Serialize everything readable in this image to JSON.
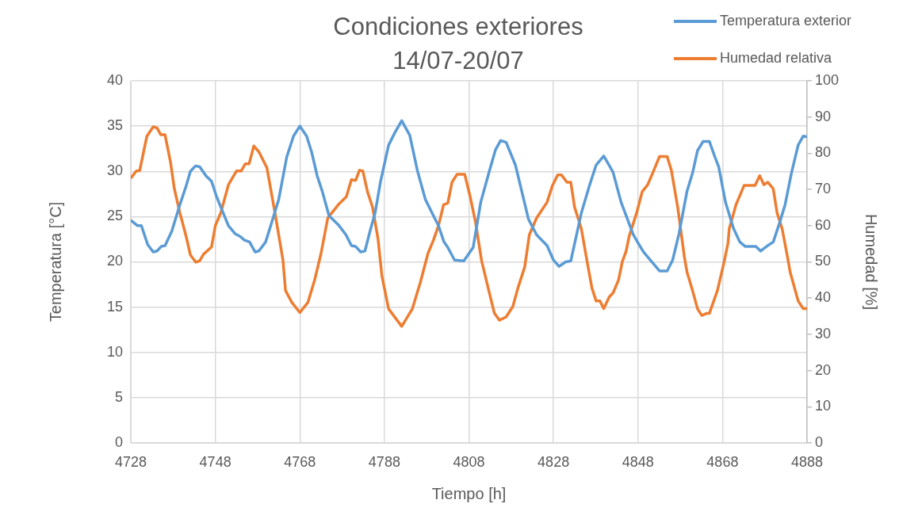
{
  "chart_data": {
    "type": "line",
    "title": "Condiciones exteriores\n14/07-20/07",
    "xlabel": "Tiempo [h]",
    "ylabel": "Temperatura [°C]",
    "y2label": "Humedad [%]",
    "xlim": [
      4728,
      4888
    ],
    "xticks": [
      4728,
      4748,
      4768,
      4788,
      4808,
      4828,
      4848,
      4868,
      4888
    ],
    "ylim": [
      0,
      40
    ],
    "yticks": [
      0,
      5,
      10,
      15,
      20,
      25,
      30,
      35,
      40
    ],
    "y2lim": [
      0,
      100
    ],
    "y2ticks": [
      0,
      10,
      20,
      30,
      40,
      50,
      60,
      70,
      80,
      90,
      100
    ],
    "grid": true,
    "legend": "top right",
    "marker": "none",
    "line_style": "solid",
    "series": [
      {
        "name": "Temperatura exterior",
        "color": "#5b9bd5",
        "axis": "y",
        "x": [
          4728,
          4729.6,
          4730.5,
          4732,
          4733.3,
          4734.2,
          4735.2,
          4736.1,
          4737.7,
          4739.6,
          4741.1,
          4742.1,
          4743.3,
          4744.3,
          4745.8,
          4747.1,
          4748.3,
          4749.6,
          4751.1,
          4752.7,
          4753.9,
          4754.9,
          4756.1,
          4757.4,
          4758.3,
          4759.9,
          4761.1,
          4763,
          4764.9,
          4766.5,
          4768,
          4769.6,
          4770.8,
          4772.1,
          4773.3,
          4774.9,
          4777.1,
          4778.9,
          4780.2,
          4781.2,
          4782.4,
          4783.4,
          4784.6,
          4785.8,
          4787.1,
          4789,
          4790.5,
          4792.1,
          4794,
          4795.8,
          4797.7,
          4799.6,
          4800.8,
          4802.1,
          4803,
          4804.6,
          4806.8,
          4809,
          4810.8,
          4812.7,
          4814.3,
          4815.5,
          4816.8,
          4819,
          4820.5,
          4822.1,
          4824,
          4826.5,
          4828,
          4829.3,
          4830.9,
          4832.1,
          4834.6,
          4836.5,
          4838.1,
          4839.9,
          4841.5,
          4842.1,
          4844,
          4845.2,
          4846.8,
          4848,
          4849.3,
          4850.9,
          4853.1,
          4854.9,
          4856.2,
          4857.7,
          4859.6,
          4860.9,
          4862.1,
          4863.4,
          4864.9,
          4866.2,
          4867.1,
          4868.7,
          4870.6,
          4872.1,
          4873.4,
          4875.9,
          4877,
          4878.4,
          4880,
          4881.5,
          4882.8,
          4884.3,
          4885.9,
          4887.1,
          4888
        ],
        "values": [
          24.6,
          24,
          24,
          21.9,
          21.1,
          21.2,
          21.7,
          21.8,
          23.4,
          26.3,
          28.4,
          30,
          30.6,
          30.5,
          29.5,
          28.9,
          27.2,
          25.7,
          24,
          23.1,
          22.8,
          22.4,
          22.2,
          21.1,
          21.2,
          22.2,
          24,
          26.9,
          31.6,
          33.9,
          35,
          33.9,
          32.1,
          29.5,
          27.8,
          25.1,
          24.1,
          23,
          21.8,
          21.7,
          21.1,
          21.2,
          23.4,
          25.4,
          28.9,
          32.9,
          34.3,
          35.6,
          34,
          30.1,
          26.9,
          25.1,
          24,
          22.2,
          21.6,
          20.2,
          20.1,
          21.6,
          26.6,
          29.8,
          32.4,
          33.4,
          33.2,
          30.7,
          27.8,
          24.7,
          23,
          21.8,
          20.2,
          19.5,
          20,
          20.1,
          25.4,
          28.4,
          30.7,
          31.7,
          30.4,
          29.9,
          26.6,
          25.1,
          23.1,
          22.1,
          21.1,
          20.2,
          19,
          19,
          20.2,
          23.1,
          27.8,
          29.8,
          32.3,
          33.3,
          33.3,
          31.6,
          30.5,
          26.6,
          23.7,
          22.2,
          21.7,
          21.7,
          21.2,
          21.7,
          22.2,
          24.3,
          26.3,
          29.8,
          32.9,
          33.9,
          33.8
        ]
      },
      {
        "name": "Humedad relativa",
        "color": "#ed7d31",
        "axis": "y2",
        "x": [
          4728,
          4729.3,
          4730.1,
          4731.8,
          4733.3,
          4734.2,
          4735.1,
          4736.1,
          4737.4,
          4738.3,
          4739.6,
          4741.1,
          4742.1,
          4743.4,
          4744.3,
          4745.2,
          4747.1,
          4748,
          4749.3,
          4751.1,
          4753,
          4754.1,
          4755.1,
          4756,
          4757.1,
          4758.3,
          4760.2,
          4762.1,
          4764,
          4764.6,
          4766.1,
          4768,
          4769.9,
          4771.5,
          4773,
          4774.6,
          4777.1,
          4779,
          4780.2,
          4781.2,
          4782.1,
          4782.9,
          4784,
          4785.2,
          4786.5,
          4787.4,
          4789,
          4792.1,
          4794.6,
          4796.5,
          4798.3,
          4799.6,
          4800.8,
          4802,
          4803,
          4804,
          4805.2,
          4807,
          4808.3,
          4809.6,
          4811,
          4812.7,
          4814,
          4815.2,
          4816.8,
          4818.4,
          4819.6,
          4821.2,
          4822.3,
          4824,
          4826.5,
          4827.7,
          4829,
          4829.9,
          4831.2,
          4832.1,
          4833,
          4834.6,
          4835.9,
          4837.1,
          4838.1,
          4839,
          4839.9,
          4841.2,
          4842.1,
          4843.4,
          4844.3,
          4845.2,
          4845.9,
          4847.7,
          4849,
          4850.3,
          4851.5,
          4853.1,
          4854.9,
          4855.9,
          4857.4,
          4859,
          4859.6,
          4860.9,
          4862.1,
          4863.1,
          4864.3,
          4864.9,
          4866.8,
          4868.4,
          4869.3,
          4869.6,
          4871.2,
          4873.1,
          4875.7,
          4876.8,
          4877.8,
          4878.7,
          4880,
          4880.9,
          4882.1,
          4883.4,
          4884,
          4885.9,
          4887.1,
          4888
        ],
        "values": [
          73.1,
          75.1,
          75.2,
          84.7,
          87.3,
          87,
          85.1,
          85.1,
          77.5,
          70.2,
          63.6,
          57,
          51.9,
          49.9,
          50.3,
          52.1,
          54.1,
          60,
          63.6,
          71.3,
          75.1,
          75.1,
          77.1,
          77.1,
          82,
          80.4,
          76,
          63.6,
          50.5,
          42.1,
          38.8,
          36,
          38.8,
          45,
          52.3,
          62.1,
          65.8,
          68,
          72.7,
          72.5,
          75.3,
          75.1,
          69.4,
          65.1,
          56.3,
          46.2,
          37,
          32.2,
          37,
          44.3,
          52.3,
          56,
          60,
          65.8,
          66.2,
          72,
          74.2,
          74.2,
          68,
          60.7,
          50.3,
          42.1,
          35.9,
          33.9,
          34.8,
          37.7,
          42.8,
          48.6,
          57.5,
          62.1,
          66.5,
          70.9,
          74,
          74,
          72,
          72,
          65.1,
          59.2,
          50.5,
          42.8,
          39.2,
          39.2,
          37.1,
          40.3,
          41.4,
          45,
          50.1,
          53,
          57,
          63.6,
          69.4,
          71.3,
          74.6,
          79.1,
          79.1,
          75.3,
          65.1,
          51.2,
          47.2,
          42.1,
          37,
          35.2,
          35.8,
          35.8,
          42.1,
          50.1,
          55.2,
          59.2,
          65.8,
          71.1,
          71.1,
          73.8,
          71.3,
          72,
          70.2,
          63.6,
          59.2,
          51.2,
          47.2,
          39.2,
          37.1,
          37.1
        ]
      }
    ]
  }
}
